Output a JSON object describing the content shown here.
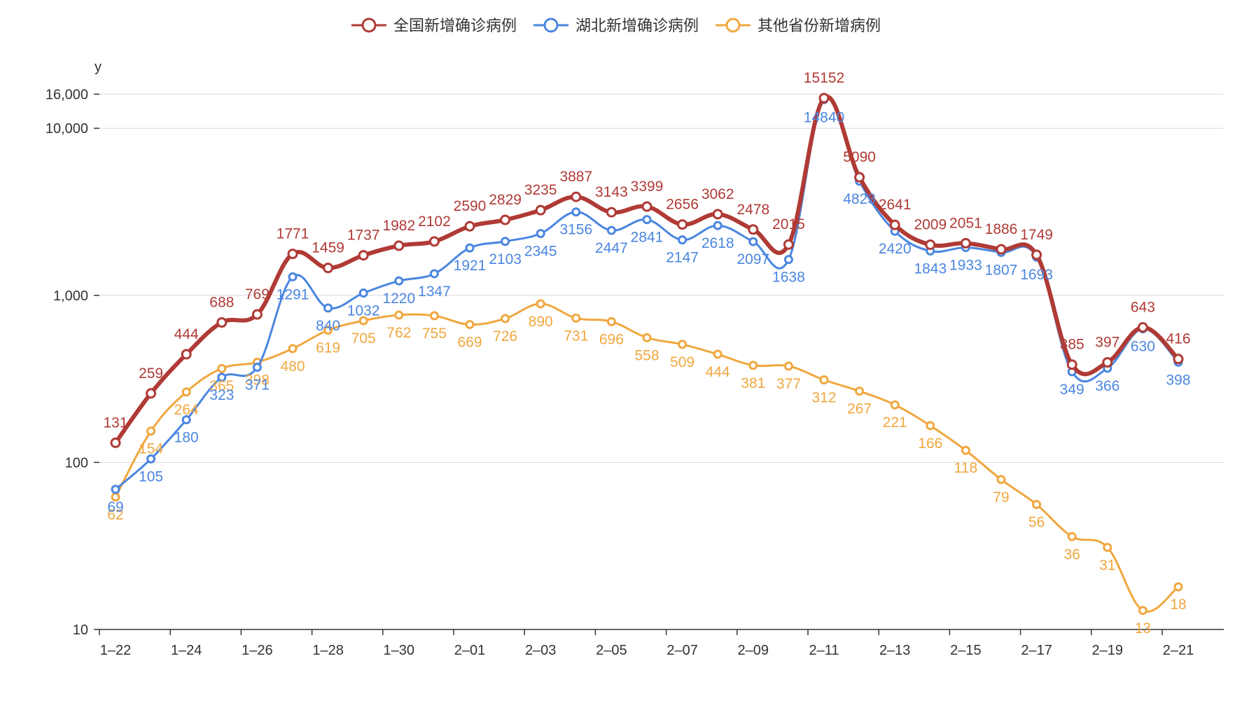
{
  "chart_data": {
    "type": "line",
    "title": "",
    "xlabel": "",
    "ylabel": "y",
    "yscale": "log",
    "ylim": [
      10,
      16000
    ],
    "yticks": [
      10,
      100,
      1000,
      10000,
      16000
    ],
    "ytick_labels": [
      "10",
      "100",
      "1,000",
      "10,000",
      "16,000"
    ],
    "grid": true,
    "legend_position": "top-center",
    "categories": [
      "1-22",
      "1-23",
      "1-24",
      "1-25",
      "1-26",
      "1-27",
      "1-28",
      "1-29",
      "1-30",
      "1-31",
      "2-01",
      "2-02",
      "2-03",
      "2-04",
      "2-05",
      "2-06",
      "2-07",
      "2-08",
      "2-09",
      "2-10",
      "2-11",
      "2-12",
      "2-13",
      "2-14",
      "2-15",
      "2-16",
      "2-17",
      "2-18",
      "2-19",
      "2-20",
      "2-21"
    ],
    "xtick_labels": [
      "1–22",
      "1–24",
      "1–26",
      "1–28",
      "1–30",
      "2–01",
      "2–03",
      "2–05",
      "2–07",
      "2–09",
      "2–11",
      "2–13",
      "2–15",
      "2–17",
      "2–19",
      "2–21"
    ],
    "series": [
      {
        "name": "全国新增确诊病例",
        "color": "#b03a35",
        "values": [
          131,
          259,
          444,
          688,
          769,
          1771,
          1459,
          1737,
          1982,
          2102,
          2590,
          2829,
          3235,
          3887,
          3143,
          3399,
          2656,
          3062,
          2478,
          2015,
          15152,
          5090,
          2641,
          2009,
          2051,
          1886,
          1749,
          385,
          397,
          643,
          416
        ]
      },
      {
        "name": "湖北新增确诊病例",
        "color": "#4a86e0",
        "values": [
          69,
          105,
          180,
          323,
          371,
          1291,
          840,
          1032,
          1220,
          1347,
          1921,
          2103,
          2345,
          3156,
          2447,
          2841,
          2147,
          2618,
          2097,
          1638,
          14840,
          4823,
          2420,
          1843,
          1933,
          1807,
          1693,
          349,
          366,
          630,
          398
        ]
      },
      {
        "name": "其他省份新增病例",
        "color": "#f0a73f",
        "values": [
          62,
          154,
          264,
          365,
          398,
          480,
          619,
          705,
          762,
          755,
          669,
          726,
          890,
          731,
          696,
          558,
          509,
          444,
          381,
          377,
          312,
          267,
          221,
          166,
          118,
          79,
          56,
          36,
          31,
          13,
          18
        ]
      }
    ]
  }
}
